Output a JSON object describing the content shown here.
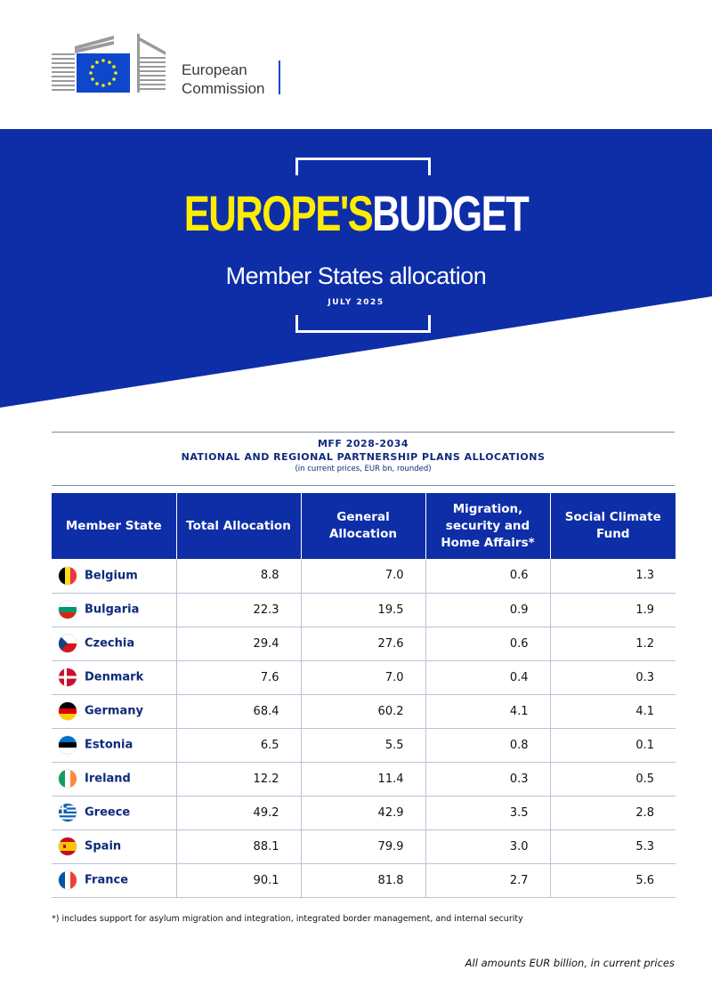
{
  "header": {
    "logo_line1": "European",
    "logo_line2": "Commission",
    "brand_color": "#0e47cb"
  },
  "banner": {
    "title_part1": "EUROPE'S",
    "title_part2": "BUDGET",
    "subtitle": "Member States allocation",
    "date": "JULY 2025",
    "background_color": "#0e2ea8",
    "accent_color": "#ffed00"
  },
  "table_heading": {
    "line1": "MFF 2028-2034",
    "line2": "NATIONAL AND REGIONAL PARTNERSHIP PLANS ALLOCATIONS",
    "line3": "(in current prices, EUR bn, rounded)"
  },
  "table": {
    "columns": [
      "Member State",
      "Total Allocation",
      "General Allocation",
      "Migration, security and Home Affairs*",
      "Social Climate Fund"
    ],
    "rows": [
      {
        "state": "Belgium",
        "flag": "belgium-flag-icon",
        "total": "8.8",
        "general": "7.0",
        "migration": "0.6",
        "climate": "1.3"
      },
      {
        "state": "Bulgaria",
        "flag": "bulgaria-flag-icon",
        "total": "22.3",
        "general": "19.5",
        "migration": "0.9",
        "climate": "1.9"
      },
      {
        "state": "Czechia",
        "flag": "czechia-flag-icon",
        "total": "29.4",
        "general": "27.6",
        "migration": "0.6",
        "climate": "1.2"
      },
      {
        "state": "Denmark",
        "flag": "denmark-flag-icon",
        "total": "7.6",
        "general": "7.0",
        "migration": "0.4",
        "climate": "0.3"
      },
      {
        "state": "Germany",
        "flag": "germany-flag-icon",
        "total": "68.4",
        "general": "60.2",
        "migration": "4.1",
        "climate": "4.1"
      },
      {
        "state": "Estonia",
        "flag": "estonia-flag-icon",
        "total": "6.5",
        "general": "5.5",
        "migration": "0.8",
        "climate": "0.1"
      },
      {
        "state": "Ireland",
        "flag": "ireland-flag-icon",
        "total": "12.2",
        "general": "11.4",
        "migration": "0.3",
        "climate": "0.5"
      },
      {
        "state": "Greece",
        "flag": "greece-flag-icon",
        "total": "49.2",
        "general": "42.9",
        "migration": "3.5",
        "climate": "2.8"
      },
      {
        "state": "Spain",
        "flag": "spain-flag-icon",
        "total": "88.1",
        "general": "79.9",
        "migration": "3.0",
        "climate": "5.3"
      },
      {
        "state": "France",
        "flag": "france-flag-icon",
        "total": "90.1",
        "general": "81.8",
        "migration": "2.7",
        "climate": "5.6"
      }
    ]
  },
  "footnote": "*) includes support for asylum migration and integration, integrated border management, and internal security",
  "bottom_note": "All amounts EUR billion, in current prices"
}
